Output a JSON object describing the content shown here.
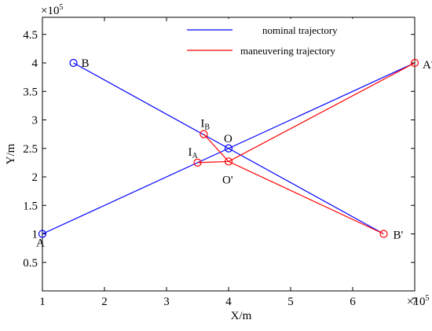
{
  "chart_data": {
    "type": "line",
    "xlabel": "X/m",
    "ylabel": "Y/m",
    "x_multiplier": "×10",
    "x_multiplier_exp": "5",
    "y_multiplier": "×10",
    "y_multiplier_exp": "5",
    "xlim": [
      100000,
      700000
    ],
    "ylim": [
      0,
      480000
    ],
    "xticks": [
      {
        "value": 100000,
        "label": "1"
      },
      {
        "value": 200000,
        "label": "2"
      },
      {
        "value": 300000,
        "label": "3"
      },
      {
        "value": 400000,
        "label": "4"
      },
      {
        "value": 500000,
        "label": "5"
      },
      {
        "value": 600000,
        "label": "6"
      },
      {
        "value": 700000,
        "label": "7"
      }
    ],
    "yticks": [
      {
        "value": 50000,
        "label": "0.5"
      },
      {
        "value": 100000,
        "label": "1"
      },
      {
        "value": 150000,
        "label": "1.5"
      },
      {
        "value": 200000,
        "label": "2"
      },
      {
        "value": 250000,
        "label": "2.5"
      },
      {
        "value": 300000,
        "label": "3"
      },
      {
        "value": 350000,
        "label": "3.5"
      },
      {
        "value": 400000,
        "label": "4"
      },
      {
        "value": 450000,
        "label": "4.5"
      }
    ],
    "legend_position": "top-right",
    "series": [
      {
        "name": "nominal trajectory",
        "color": "#0000ff",
        "segments": [
          [
            [
              100000,
              100000
            ],
            [
              400000,
              250000
            ],
            [
              700000,
              400000
            ]
          ],
          [
            [
              150000,
              400000
            ],
            [
              400000,
              250000
            ],
            [
              650000,
              100000
            ]
          ]
        ]
      },
      {
        "name": "maneuvering trajectory",
        "color": "#ff0000",
        "segments": [
          [
            [
              350000,
              225000
            ],
            [
              400000,
              227000
            ],
            [
              700000,
              400000
            ]
          ],
          [
            [
              360000,
              275000
            ],
            [
              400000,
              227000
            ],
            [
              650000,
              100000
            ]
          ]
        ]
      }
    ],
    "points": [
      {
        "label": "A",
        "sub": "",
        "x": 100000,
        "y": 100000,
        "color": "#0000ff"
      },
      {
        "label": "B",
        "sub": "",
        "x": 150000,
        "y": 400000,
        "color": "#0000ff"
      },
      {
        "label": "O",
        "sub": "",
        "x": 400000,
        "y": 250000,
        "color": "#0000ff"
      },
      {
        "label": "A'",
        "sub": "",
        "x": 700000,
        "y": 400000,
        "color": "#ff0000"
      },
      {
        "label": "B'",
        "sub": "",
        "x": 650000,
        "y": 100000,
        "color": "#ff0000"
      },
      {
        "label": "O'",
        "sub": "",
        "x": 400000,
        "y": 227000,
        "color": "#ff0000"
      },
      {
        "label": "I",
        "sub": "A",
        "x": 350000,
        "y": 225000,
        "color": "#ff0000"
      },
      {
        "label": "I",
        "sub": "B",
        "x": 360000,
        "y": 275000,
        "color": "#ff0000"
      }
    ]
  }
}
